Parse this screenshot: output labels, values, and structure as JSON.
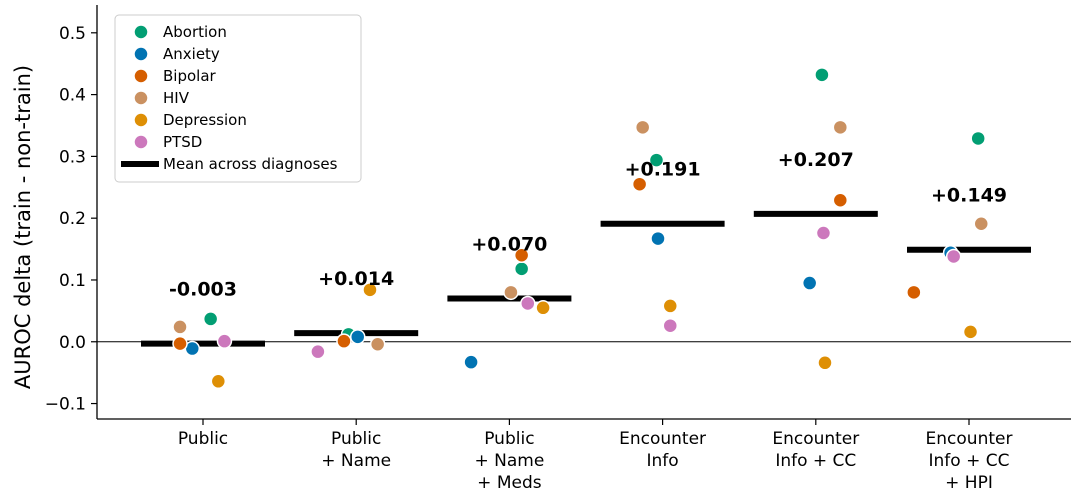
{
  "chart_data": {
    "type": "scatter",
    "ylabel": "AUROC delta (train - non-train)",
    "ylim": [
      -0.125,
      0.545
    ],
    "yticks": [
      -0.1,
      0.0,
      0.1,
      0.2,
      0.3,
      0.4,
      0.5
    ],
    "ytick_labels": [
      "−0.1",
      "0.0",
      "0.1",
      "0.2",
      "0.3",
      "0.4",
      "0.5"
    ],
    "zero_line": true,
    "grid": false,
    "legend_position": "top-left",
    "categories": [
      [
        "Public"
      ],
      [
        "Public",
        "+ Name"
      ],
      [
        "Public",
        "+ Name",
        "+ Meds"
      ],
      [
        "Encounter",
        "Info"
      ],
      [
        "Encounter",
        "Info + CC"
      ],
      [
        "Encounter",
        "Info + CC",
        "+ HPI"
      ]
    ],
    "series": [
      {
        "name": "Abortion",
        "color": "#029e73",
        "values": [
          0.037,
          0.012,
          0.118,
          0.294,
          0.432,
          0.329
        ],
        "jitter": [
          0.05,
          -0.05,
          0.08,
          -0.04,
          0.04,
          0.06
        ]
      },
      {
        "name": "Anxiety",
        "color": "#0173b2",
        "values": [
          -0.011,
          0.008,
          -0.033,
          0.167,
          0.095,
          0.144
        ],
        "jitter": [
          -0.07,
          0.01,
          -0.25,
          -0.03,
          -0.04,
          -0.12
        ]
      },
      {
        "name": "Bipolar",
        "color": "#d55e00",
        "values": [
          -0.003,
          0.001,
          0.14,
          0.255,
          0.229,
          0.08
        ],
        "jitter": [
          -0.15,
          -0.08,
          0.08,
          -0.15,
          0.16,
          -0.36
        ]
      },
      {
        "name": "HIV",
        "color": "#ca9161",
        "values": [
          0.024,
          -0.004,
          0.08,
          0.347,
          0.347,
          0.191
        ],
        "jitter": [
          -0.15,
          0.14,
          0.01,
          -0.13,
          0.16,
          0.08
        ]
      },
      {
        "name": "Depression",
        "color": "#de8f05",
        "values": [
          -0.064,
          0.084,
          0.055,
          0.058,
          -0.034,
          0.016
        ],
        "jitter": [
          0.1,
          0.09,
          0.22,
          0.05,
          0.06,
          0.01
        ]
      },
      {
        "name": "PTSD",
        "color": "#cc78bc",
        "values": [
          0.001,
          -0.016,
          0.062,
          0.026,
          0.176,
          0.138
        ],
        "jitter": [
          0.14,
          -0.25,
          0.12,
          0.05,
          0.05,
          -0.1
        ]
      }
    ],
    "means": [
      -0.003,
      0.014,
      0.07,
      0.191,
      0.207,
      0.149
    ],
    "mean_labels": [
      "-0.003",
      "+0.014",
      "+0.070",
      "+0.191",
      "+0.207",
      "+0.149"
    ],
    "mean_legend_label": "Mean across diagnoses"
  }
}
